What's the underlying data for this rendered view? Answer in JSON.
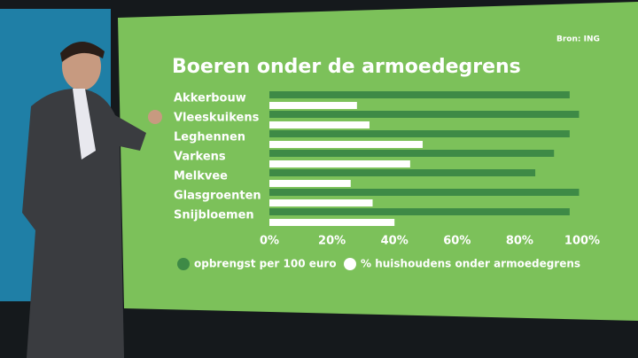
{
  "chart_data": {
    "type": "hbar",
    "title": "Boeren onder de armoedegrens",
    "source": "Bron: ING",
    "categories": [
      "Akkerbouw",
      "Vleeskuikens",
      "Leghennen",
      "Varkens",
      "Melkvee",
      "Glasgroenten",
      "Snijbloemen"
    ],
    "series": [
      {
        "name": "opbrengst per 100 euro",
        "color": "#3e8a46",
        "values": [
          96,
          99,
          96,
          91,
          85,
          99,
          96
        ]
      },
      {
        "name": "% huishoudens onder armoedegrens",
        "color": "#ffffff",
        "values": [
          28,
          32,
          49,
          45,
          26,
          33,
          40
        ]
      }
    ],
    "xlim": [
      0,
      100
    ],
    "xticks": [
      {
        "value": 0,
        "label": "0%"
      },
      {
        "value": 20,
        "label": "20%"
      },
      {
        "value": 40,
        "label": "40%"
      },
      {
        "value": 60,
        "label": "60%"
      },
      {
        "value": 80,
        "label": "80%"
      },
      {
        "value": 100,
        "label": "100%"
      }
    ],
    "grid": false,
    "legend": "bottom"
  }
}
